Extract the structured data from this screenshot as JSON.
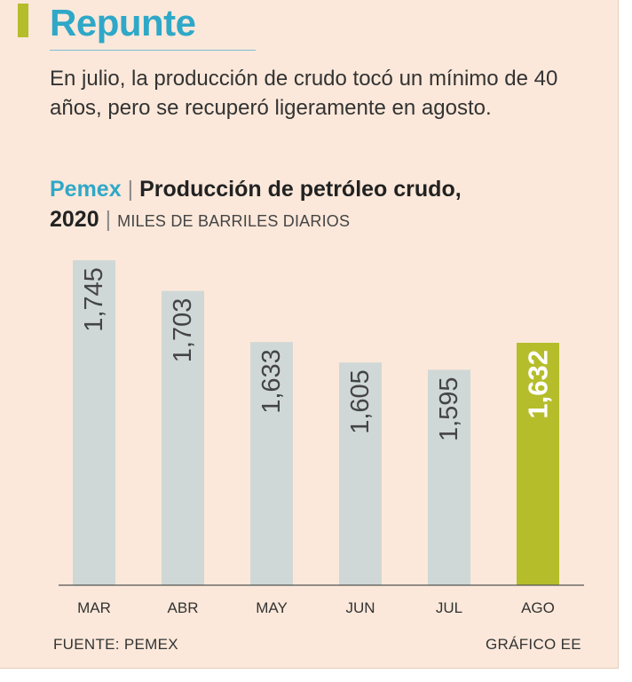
{
  "header": {
    "title": "Repunte",
    "subtitle": "En julio, la producción de crudo tocó un mínimo de 40 años, pero se recuperó ligeramente en agosto."
  },
  "chart_header": {
    "brand": "Pemex",
    "title": "Producción de petróleo crudo,",
    "year": "2020",
    "units": "MILES DE BARRILES DIARIOS"
  },
  "chart_data": {
    "type": "bar",
    "categories": [
      "MAR",
      "ABR",
      "MAY",
      "JUN",
      "JUL",
      "AGO"
    ],
    "values": [
      1745,
      1703,
      1633,
      1605,
      1595,
      1632
    ],
    "value_labels": [
      "1,745",
      "1,703",
      "1,633",
      "1,605",
      "1,595",
      "1,632"
    ],
    "highlight_index": 5,
    "ylim": [
      1300,
      1750
    ],
    "grid": false,
    "colors": {
      "bar": "#cfd8d6",
      "highlight": "#b5bd2b",
      "label": "#444444",
      "highlight_label": "#ffffff"
    }
  },
  "footer": {
    "source": "FUENTE: PEMEX",
    "credit": "GRÁFICO EE"
  }
}
